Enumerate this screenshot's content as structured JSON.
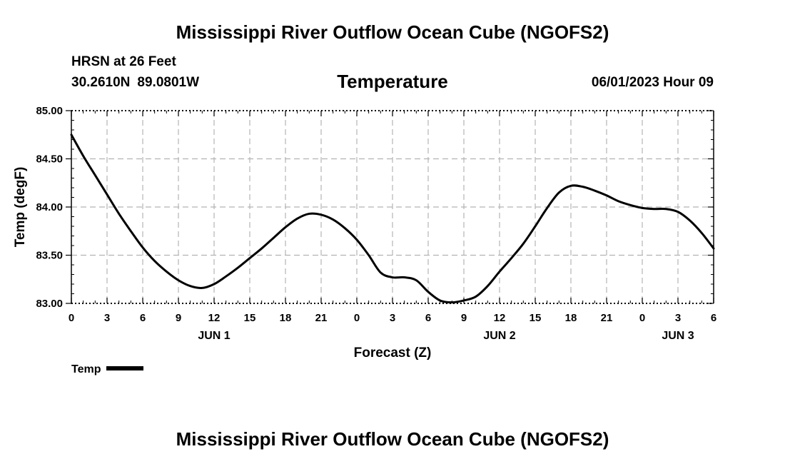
{
  "header": {
    "title": "Mississippi River Outflow Ocean Cube (NGOFS2)",
    "station": "HRSN at 26 Feet",
    "lat": "30.2610N",
    "lon": "89.0801W",
    "subtitle": "Temperature",
    "datetime": "06/01/2023 Hour 09"
  },
  "footer": {
    "title": "Mississippi River Outflow Ocean Cube (NGOFS2)"
  },
  "legend": {
    "label": "Temp",
    "color": "#000000"
  },
  "chart_data": {
    "type": "line",
    "title": "Temperature",
    "xlabel": "Forecast (Z)",
    "ylabel": "Temp (degF)",
    "xlim": [
      0,
      54
    ],
    "ylim": [
      83.0,
      85.0
    ],
    "grid": true,
    "legend_position": "bottom-left",
    "x_ticks": [
      {
        "x": 0,
        "label": "0"
      },
      {
        "x": 3,
        "label": "3"
      },
      {
        "x": 6,
        "label": "6"
      },
      {
        "x": 9,
        "label": "9"
      },
      {
        "x": 12,
        "label": "12"
      },
      {
        "x": 15,
        "label": "15"
      },
      {
        "x": 18,
        "label": "18"
      },
      {
        "x": 21,
        "label": "21"
      },
      {
        "x": 24,
        "label": "0"
      },
      {
        "x": 27,
        "label": "3"
      },
      {
        "x": 30,
        "label": "6"
      },
      {
        "x": 33,
        "label": "9"
      },
      {
        "x": 36,
        "label": "12"
      },
      {
        "x": 39,
        "label": "15"
      },
      {
        "x": 42,
        "label": "18"
      },
      {
        "x": 45,
        "label": "21"
      },
      {
        "x": 48,
        "label": "0"
      },
      {
        "x": 51,
        "label": "3"
      },
      {
        "x": 54,
        "label": "6"
      }
    ],
    "date_labels": [
      {
        "x": 12,
        "label": "JUN 1"
      },
      {
        "x": 36,
        "label": "JUN 2"
      },
      {
        "x": 51,
        "label": "JUN 3"
      }
    ],
    "y_ticks": [
      {
        "y": 83.0,
        "label": "83.00"
      },
      {
        "y": 83.5,
        "label": "83.50"
      },
      {
        "y": 84.0,
        "label": "84.00"
      },
      {
        "y": 84.5,
        "label": "84.50"
      },
      {
        "y": 85.0,
        "label": "85.00"
      }
    ],
    "series": [
      {
        "name": "Temp",
        "x": [
          0,
          1,
          2,
          3,
          4,
          5,
          6,
          7,
          8,
          9,
          10,
          11,
          12,
          13,
          14,
          15,
          16,
          17,
          18,
          19,
          20,
          21,
          22,
          23,
          24,
          25,
          26,
          27,
          28,
          29,
          30,
          31,
          32,
          33,
          34,
          35,
          36,
          37,
          38,
          39,
          40,
          41,
          42,
          43,
          44,
          45,
          46,
          47,
          48,
          49,
          50,
          51,
          52,
          53,
          54
        ],
        "values": [
          84.75,
          84.53,
          84.33,
          84.13,
          83.93,
          83.75,
          83.58,
          83.44,
          83.33,
          83.24,
          83.18,
          83.16,
          83.2,
          83.28,
          83.37,
          83.47,
          83.57,
          83.68,
          83.79,
          83.88,
          83.93,
          83.92,
          83.87,
          83.78,
          83.66,
          83.5,
          83.32,
          83.27,
          83.27,
          83.24,
          83.12,
          83.03,
          83.01,
          83.03,
          83.07,
          83.18,
          83.33,
          83.47,
          83.62,
          83.8,
          83.99,
          84.15,
          84.22,
          84.21,
          84.17,
          84.12,
          84.06,
          84.02,
          83.99,
          83.98,
          83.98,
          83.95,
          83.86,
          83.73,
          83.57
        ]
      }
    ]
  }
}
